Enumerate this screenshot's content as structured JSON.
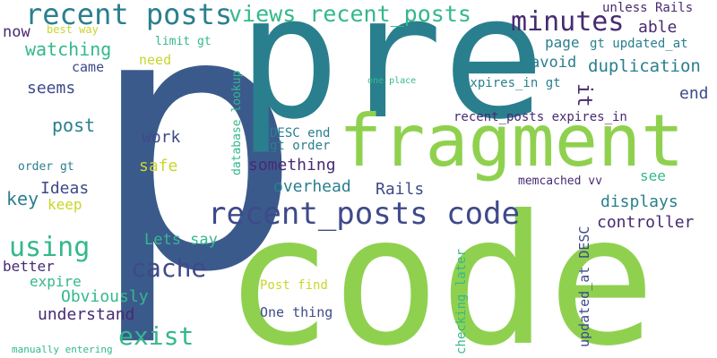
{
  "colors": {
    "background": "#ffffff",
    "navy": "#3b5a8c",
    "teal": "#2a7f8e",
    "lime": "#8fd14f",
    "green": "#34b88c",
    "purple": "#472a72",
    "indigo": "#3e4a89",
    "yellow": "#c8d62c"
  },
  "words": [
    {
      "id": "p",
      "text": "p",
      "color": "navy"
    },
    {
      "id": "pre",
      "text": "pre",
      "color": "teal"
    },
    {
      "id": "code",
      "text": "code",
      "color": "lime"
    },
    {
      "id": "fragment",
      "text": "fragment",
      "color": "lime"
    },
    {
      "id": "recent-posts",
      "text": "recent posts",
      "color": "teal"
    },
    {
      "id": "views-recent-posts",
      "text": "views recent_posts",
      "color": "green"
    },
    {
      "id": "minutes",
      "text": "minutes",
      "color": "purple"
    },
    {
      "id": "recent-posts-code",
      "text": "recent_posts code",
      "color": "indigo"
    },
    {
      "id": "using",
      "text": "using",
      "color": "green"
    },
    {
      "id": "cache",
      "text": "cache",
      "color": "indigo"
    },
    {
      "id": "exist",
      "text": "exist",
      "color": "green"
    },
    {
      "id": "it",
      "text": "it",
      "color": "purple"
    },
    {
      "id": "now",
      "text": "now",
      "color": "purple"
    },
    {
      "id": "best-way",
      "text": "best way",
      "color": "yellow"
    },
    {
      "id": "watching",
      "text": "watching",
      "color": "green"
    },
    {
      "id": "limit-gt",
      "text": "limit gt",
      "color": "green"
    },
    {
      "id": "need",
      "text": "need",
      "color": "yellow"
    },
    {
      "id": "came",
      "text": "came",
      "color": "indigo"
    },
    {
      "id": "seems",
      "text": "seems",
      "color": "indigo"
    },
    {
      "id": "post",
      "text": "post",
      "color": "teal"
    },
    {
      "id": "work",
      "text": "work",
      "color": "indigo"
    },
    {
      "id": "order-gt",
      "text": "order gt",
      "color": "teal"
    },
    {
      "id": "safe",
      "text": "safe",
      "color": "yellow"
    },
    {
      "id": "ideas",
      "text": "Ideas",
      "color": "indigo"
    },
    {
      "id": "key",
      "text": "key",
      "color": "teal"
    },
    {
      "id": "keep",
      "text": "keep",
      "color": "yellow"
    },
    {
      "id": "better",
      "text": "better",
      "color": "purple"
    },
    {
      "id": "expire",
      "text": "expire",
      "color": "green"
    },
    {
      "id": "obviously",
      "text": "Obviously",
      "color": "green"
    },
    {
      "id": "understand",
      "text": "understand",
      "color": "purple"
    },
    {
      "id": "lets-say",
      "text": "Lets say",
      "color": "green"
    },
    {
      "id": "manually-entering",
      "text": "manually entering",
      "color": "green"
    },
    {
      "id": "database-lookup",
      "text": "database lookup",
      "color": "green",
      "rotate": true
    },
    {
      "id": "unless-rails",
      "text": "unless Rails",
      "color": "purple"
    },
    {
      "id": "able",
      "text": "able",
      "color": "purple"
    },
    {
      "id": "gt-updated-at",
      "text": "gt updated_at",
      "color": "teal"
    },
    {
      "id": "page",
      "text": "page",
      "color": "teal"
    },
    {
      "id": "avoid",
      "text": "avoid",
      "color": "teal"
    },
    {
      "id": "duplication",
      "text": "duplication",
      "color": "teal"
    },
    {
      "id": "one-place",
      "text": "one place",
      "color": "green"
    },
    {
      "id": "expires-in-gt",
      "text": "expires_in gt",
      "color": "teal"
    },
    {
      "id": "end",
      "text": "end",
      "color": "indigo"
    },
    {
      "id": "recent-posts-expires-in",
      "text": "recent_posts expires_in",
      "color": "purple"
    },
    {
      "id": "desc-end",
      "text": "DESC end",
      "color": "teal"
    },
    {
      "id": "gt-order",
      "text": "gt order",
      "color": "teal"
    },
    {
      "id": "something",
      "text": "something",
      "color": "purple"
    },
    {
      "id": "see",
      "text": "see",
      "color": "green"
    },
    {
      "id": "overhead",
      "text": "overhead",
      "color": "teal"
    },
    {
      "id": "rails",
      "text": "Rails",
      "color": "indigo"
    },
    {
      "id": "memcached-vv",
      "text": "memcached vv",
      "color": "purple"
    },
    {
      "id": "displays",
      "text": "displays",
      "color": "teal"
    },
    {
      "id": "controller",
      "text": "controller",
      "color": "purple"
    },
    {
      "id": "post-find",
      "text": "Post find",
      "color": "yellow"
    },
    {
      "id": "one-thing",
      "text": "One thing",
      "color": "indigo"
    },
    {
      "id": "checking-later",
      "text": "checking later",
      "color": "green",
      "rotate": true
    },
    {
      "id": "updated-at-desc",
      "text": "updated_at DESC",
      "color": "indigo",
      "rotate": true
    }
  ]
}
